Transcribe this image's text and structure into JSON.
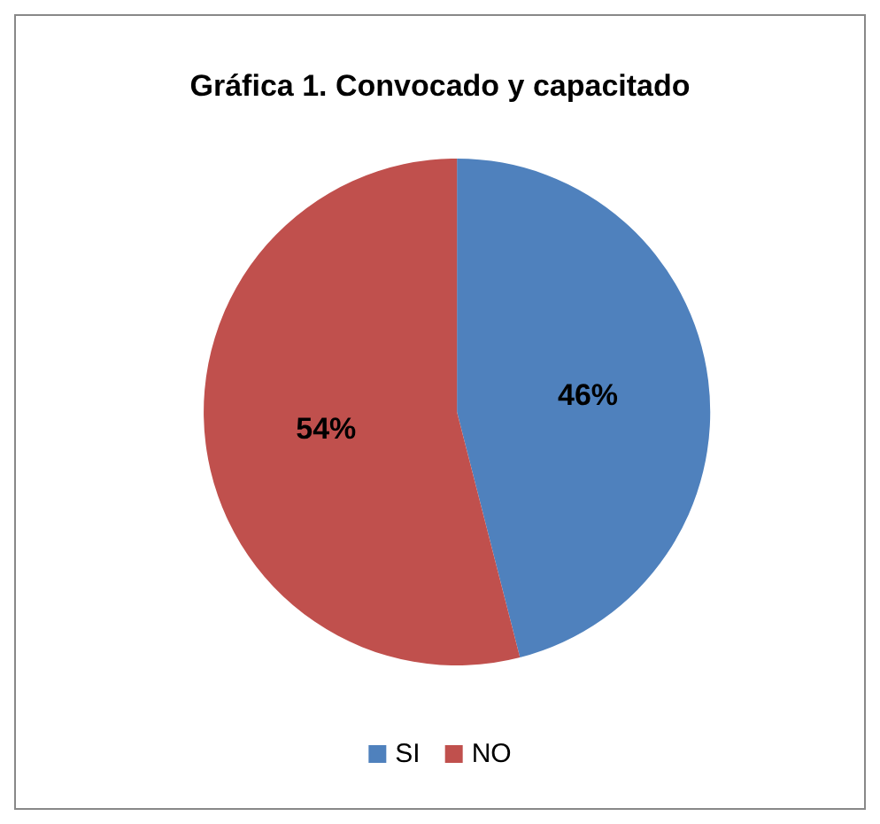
{
  "chart_data": {
    "type": "pie",
    "title": "Gráfica 1. Convocado y capacitado",
    "categories": [
      "SI",
      "NO"
    ],
    "values": [
      46,
      54
    ],
    "colors": [
      "#4f81bd",
      "#c0504d"
    ],
    "value_labels": [
      "46%",
      "54%"
    ],
    "legend": "bottom"
  }
}
